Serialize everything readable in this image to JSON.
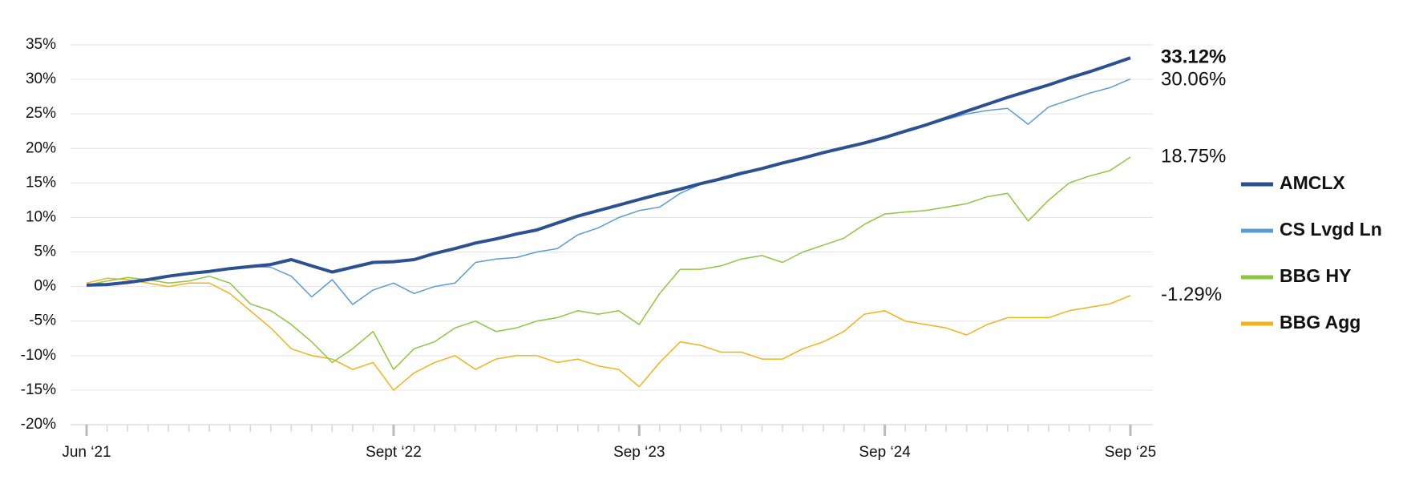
{
  "chart_data": {
    "type": "line",
    "categories": [
      "Jun ‘21",
      null,
      null,
      null,
      null,
      null,
      null,
      null,
      null,
      null,
      null,
      null,
      null,
      null,
      null,
      "Sept ‘22",
      null,
      null,
      null,
      null,
      null,
      null,
      null,
      null,
      null,
      null,
      null,
      "Sep ‘23",
      null,
      null,
      null,
      null,
      null,
      null,
      null,
      null,
      null,
      null,
      null,
      "Sep ‘24",
      null,
      null,
      null,
      null,
      null,
      null,
      null,
      null,
      null,
      null,
      null,
      "Sep ‘25"
    ],
    "ylim": [
      -20,
      35
    ],
    "yticks": [
      {
        "value": -20,
        "label": "-20%"
      },
      {
        "value": -15,
        "label": "-15%"
      },
      {
        "value": -10,
        "label": "-10%"
      },
      {
        "value": -5,
        "label": "-5%"
      },
      {
        "value": 0,
        "label": "0%"
      },
      {
        "value": 5,
        "label": "5%"
      },
      {
        "value": 10,
        "label": "10%"
      },
      {
        "value": 15,
        "label": "15%"
      },
      {
        "value": 20,
        "label": "20%"
      },
      {
        "value": 25,
        "label": "25%"
      },
      {
        "value": 30,
        "label": "30%"
      },
      {
        "value": 35,
        "label": "35%"
      }
    ],
    "grid": true,
    "legend": "right",
    "series": [
      {
        "name": "AMCLX",
        "color": "#2b5192",
        "line_width": 4,
        "values": [
          0.2,
          0.3,
          0.6,
          1.0,
          1.5,
          1.9,
          2.2,
          2.6,
          2.9,
          3.2,
          3.9,
          3.0,
          2.1,
          2.8,
          3.5,
          3.6,
          3.9,
          4.8,
          5.5,
          6.3,
          6.9,
          7.6,
          8.2,
          9.2,
          10.2,
          11.0,
          11.8,
          12.6,
          13.4,
          14.1,
          14.9,
          15.6,
          16.4,
          17.1,
          17.9,
          18.6,
          19.4,
          20.1,
          20.8,
          21.6,
          22.5,
          23.4,
          24.4,
          25.4,
          26.4,
          27.4,
          28.3,
          29.2,
          30.2,
          31.1,
          32.1,
          33.12
        ],
        "value_labels": [
          null,
          null,
          null,
          null,
          null,
          null,
          null,
          null,
          null,
          null,
          null,
          null,
          null,
          null,
          null,
          null,
          null,
          null,
          null,
          null,
          null,
          null,
          null,
          null,
          null,
          null,
          null,
          null,
          null,
          null,
          null,
          null,
          null,
          null,
          null,
          null,
          null,
          null,
          null,
          null,
          null,
          null,
          null,
          null,
          null,
          null,
          null,
          null,
          null,
          null,
          null,
          "33.12%"
        ]
      },
      {
        "name": "CS Lvgd Ln",
        "color": "#5b9bd5",
        "line_width": 1.5,
        "values": [
          0.2,
          0.3,
          0.6,
          1.0,
          1.5,
          1.9,
          2.2,
          2.6,
          2.9,
          2.8,
          1.5,
          -1.5,
          1.0,
          -2.6,
          -0.5,
          0.5,
          -1.0,
          0.0,
          0.5,
          3.5,
          4.0,
          4.2,
          5.0,
          5.5,
          7.5,
          8.5,
          10.0,
          11.0,
          11.5,
          13.5,
          14.8,
          15.8,
          16.6,
          17.0,
          17.9,
          18.6,
          19.4,
          20.1,
          20.8,
          21.4,
          22.4,
          23.3,
          24.2,
          25.0,
          25.5,
          25.8,
          23.5,
          26.0,
          27.0,
          28.0,
          28.8,
          30.06
        ],
        "value_labels": [
          null,
          null,
          null,
          null,
          null,
          null,
          null,
          null,
          null,
          null,
          null,
          null,
          null,
          null,
          null,
          null,
          null,
          null,
          null,
          null,
          null,
          null,
          null,
          null,
          null,
          null,
          null,
          null,
          null,
          null,
          null,
          null,
          null,
          null,
          null,
          null,
          null,
          null,
          null,
          null,
          null,
          null,
          null,
          null,
          null,
          null,
          null,
          null,
          null,
          null,
          null,
          "30.06%"
        ]
      },
      {
        "name": "BBG HY",
        "color": "#8dc63f",
        "line_width": 1.5,
        "values": [
          0.2,
          0.8,
          1.3,
          1.0,
          0.5,
          0.8,
          1.5,
          0.5,
          -2.5,
          -3.5,
          -5.5,
          -8,
          -11,
          -9,
          -6.5,
          -12,
          -9,
          -8,
          -6,
          -5,
          -6.5,
          -6,
          -5,
          -4.5,
          -3.5,
          -4,
          -3.5,
          -5.5,
          -1,
          2.5,
          2.5,
          3,
          4,
          4.5,
          3.5,
          5,
          6,
          7,
          9,
          10.5,
          10.8,
          11,
          11.5,
          12,
          13,
          13.5,
          9.5,
          12.5,
          15,
          16,
          16.8,
          18.75
        ],
        "value_labels": [
          null,
          null,
          null,
          null,
          null,
          null,
          null,
          null,
          null,
          null,
          null,
          null,
          null,
          null,
          null,
          null,
          null,
          null,
          null,
          null,
          null,
          null,
          null,
          null,
          null,
          null,
          null,
          null,
          null,
          null,
          null,
          null,
          null,
          null,
          null,
          null,
          null,
          null,
          null,
          null,
          null,
          null,
          null,
          null,
          null,
          null,
          null,
          null,
          null,
          null,
          null,
          "18.75%"
        ]
      },
      {
        "name": "BBG Agg",
        "color": "#f2b21c",
        "line_width": 1.5,
        "values": [
          0.5,
          1.2,
          1,
          0.5,
          0,
          0.5,
          0.5,
          -1,
          -3.5,
          -6,
          -9,
          -10,
          -10.5,
          -12,
          -11,
          -15,
          -12.5,
          -11,
          -10,
          -12,
          -10.5,
          -10,
          -10,
          -11,
          -10.5,
          -11.5,
          -12,
          -14.5,
          -11,
          -8,
          -8.5,
          -9.5,
          -9.5,
          -10.5,
          -10.5,
          -9,
          -8,
          -6.5,
          -4,
          -3.5,
          -5,
          -5.5,
          -6,
          -7,
          -5.5,
          -4.5,
          -4.5,
          -4.5,
          -3.5,
          -3,
          -2.5,
          -1.29
        ],
        "value_labels": [
          null,
          null,
          null,
          null,
          null,
          null,
          null,
          null,
          null,
          null,
          null,
          null,
          null,
          null,
          null,
          null,
          null,
          null,
          null,
          null,
          null,
          null,
          null,
          null,
          null,
          null,
          null,
          null,
          null,
          null,
          null,
          null,
          null,
          null,
          null,
          null,
          null,
          null,
          null,
          null,
          null,
          null,
          null,
          null,
          null,
          null,
          null,
          null,
          null,
          null,
          null,
          "-1.29%"
        ]
      }
    ]
  }
}
